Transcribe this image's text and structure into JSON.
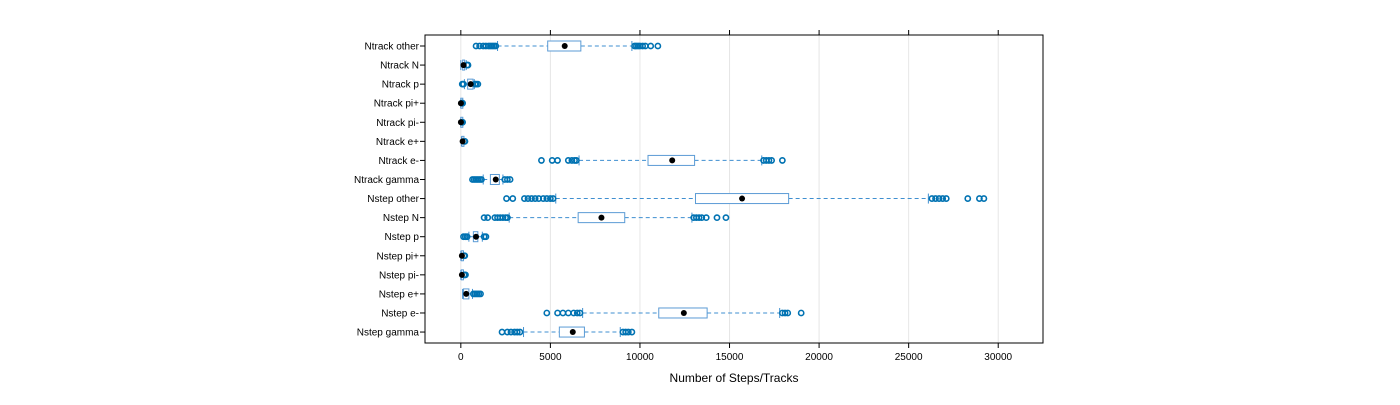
{
  "chart_data": {
    "type": "boxplot",
    "orientation": "horizontal",
    "title": "",
    "xlabel": "Number of Steps/Tracks",
    "ylabel": "",
    "xlim": [
      -2000,
      32500
    ],
    "xticks": [
      0,
      5000,
      10000,
      15000,
      20000,
      25000,
      30000
    ],
    "xtick_labels": [
      "0",
      "5000",
      "10000",
      "15000",
      "20000",
      "25000",
      "30000"
    ],
    "grid": "vertical",
    "colors": {
      "box": "#0080ff",
      "box_stroke": "#5b9bd5",
      "whisker": "#3f8fd0",
      "outlier": "#0072b2",
      "median": "#000000",
      "frame": "#000000",
      "gridline": "#e6e6e6"
    },
    "categories": [
      "Ntrack other",
      "Ntrack N",
      "Ntrack p",
      "Ntrack pi+",
      "Ntrack pi-",
      "Ntrack e+",
      "Ntrack e-",
      "Ntrack gamma",
      "Nstep other",
      "Nstep N",
      "Nstep p",
      "Nstep pi+",
      "Nstep pi-",
      "Nstep e+",
      "Nstep e-",
      "Nstep gamma"
    ],
    "series": [
      {
        "name": "Ntrack other",
        "min": 2050,
        "q1": 4850,
        "median": 5800,
        "q3": 6700,
        "max": 9550,
        "outliers": [
          850,
          1050,
          1250,
          1400,
          1550,
          1650,
          1750,
          1850,
          1950,
          9700,
          9800,
          9900,
          10000,
          10150,
          10300,
          10600,
          11000
        ]
      },
      {
        "name": "Ntrack N",
        "min": 0,
        "q1": 100,
        "median": 150,
        "q3": 200,
        "max": 300,
        "outliers": [
          350,
          400
        ]
      },
      {
        "name": "Ntrack p",
        "min": 200,
        "q1": 380,
        "median": 550,
        "q3": 680,
        "max": 750,
        "outliers": [
          80,
          150,
          800,
          850,
          950
        ]
      },
      {
        "name": "Ntrack pi+",
        "min": 0,
        "q1": 0,
        "median": 5,
        "q3": 10,
        "max": 30,
        "outliers": [
          50,
          80,
          100
        ]
      },
      {
        "name": "Ntrack pi-",
        "min": 0,
        "q1": 0,
        "median": 5,
        "q3": 10,
        "max": 30,
        "outliers": [
          50,
          80,
          100
        ]
      },
      {
        "name": "Ntrack e+",
        "min": 30,
        "q1": 60,
        "median": 100,
        "q3": 140,
        "max": 170,
        "outliers": [
          200,
          230
        ]
      },
      {
        "name": "Ntrack e-",
        "min": 6600,
        "q1": 10450,
        "median": 11800,
        "q3": 13050,
        "max": 16800,
        "outliers": [
          4500,
          5100,
          5400,
          6000,
          6200,
          6350,
          6450,
          16900,
          17050,
          17200,
          17350,
          17950
        ]
      },
      {
        "name": "Ntrack gamma",
        "min": 1250,
        "q1": 1650,
        "median": 1950,
        "q3": 2150,
        "max": 2350,
        "outliers": [
          650,
          750,
          850,
          950,
          1050,
          1150,
          2450,
          2600,
          2750
        ]
      },
      {
        "name": "Nstep other",
        "min": 5300,
        "q1": 13100,
        "median": 15700,
        "q3": 18300,
        "max": 26100,
        "outliers": [
          2550,
          2900,
          3550,
          3750,
          3950,
          4150,
          4350,
          4600,
          4800,
          5000,
          5150,
          26300,
          26500,
          26700,
          26900,
          27100,
          28300,
          28950,
          29200
        ]
      },
      {
        "name": "Nstep N",
        "min": 2700,
        "q1": 6550,
        "median": 7850,
        "q3": 9150,
        "max": 12900,
        "outliers": [
          1300,
          1500,
          1900,
          2050,
          2200,
          2350,
          2500,
          2600,
          13000,
          13150,
          13300,
          13450,
          13700,
          14300,
          14800
        ]
      },
      {
        "name": "Nstep p",
        "min": 450,
        "q1": 700,
        "median": 850,
        "q3": 950,
        "max": 1200,
        "outliers": [
          150,
          250,
          350,
          1300,
          1400
        ]
      },
      {
        "name": "Nstep pi+",
        "min": 0,
        "q1": 30,
        "median": 60,
        "q3": 90,
        "max": 150,
        "outliers": [
          180,
          220
        ]
      },
      {
        "name": "Nstep pi-",
        "min": 0,
        "q1": 30,
        "median": 60,
        "q3": 90,
        "max": 150,
        "outliers": [
          180,
          220,
          260
        ]
      },
      {
        "name": "Nstep e+",
        "min": 100,
        "q1": 150,
        "median": 300,
        "q3": 450,
        "max": 650,
        "outliers": [
          700,
          800,
          900,
          1000,
          1100
        ]
      },
      {
        "name": "Nstep e-",
        "min": 6800,
        "q1": 11050,
        "median": 12450,
        "q3": 13750,
        "max": 17800,
        "outliers": [
          4800,
          5400,
          5700,
          6000,
          6300,
          6500,
          6650,
          17950,
          18100,
          18250,
          19000
        ]
      },
      {
        "name": "Nstep gamma",
        "min": 3500,
        "q1": 5500,
        "median": 6250,
        "q3": 6900,
        "max": 8900,
        "outliers": [
          2300,
          2600,
          2800,
          3000,
          3150,
          3300,
          9050,
          9200,
          9350,
          9550
        ]
      }
    ]
  }
}
